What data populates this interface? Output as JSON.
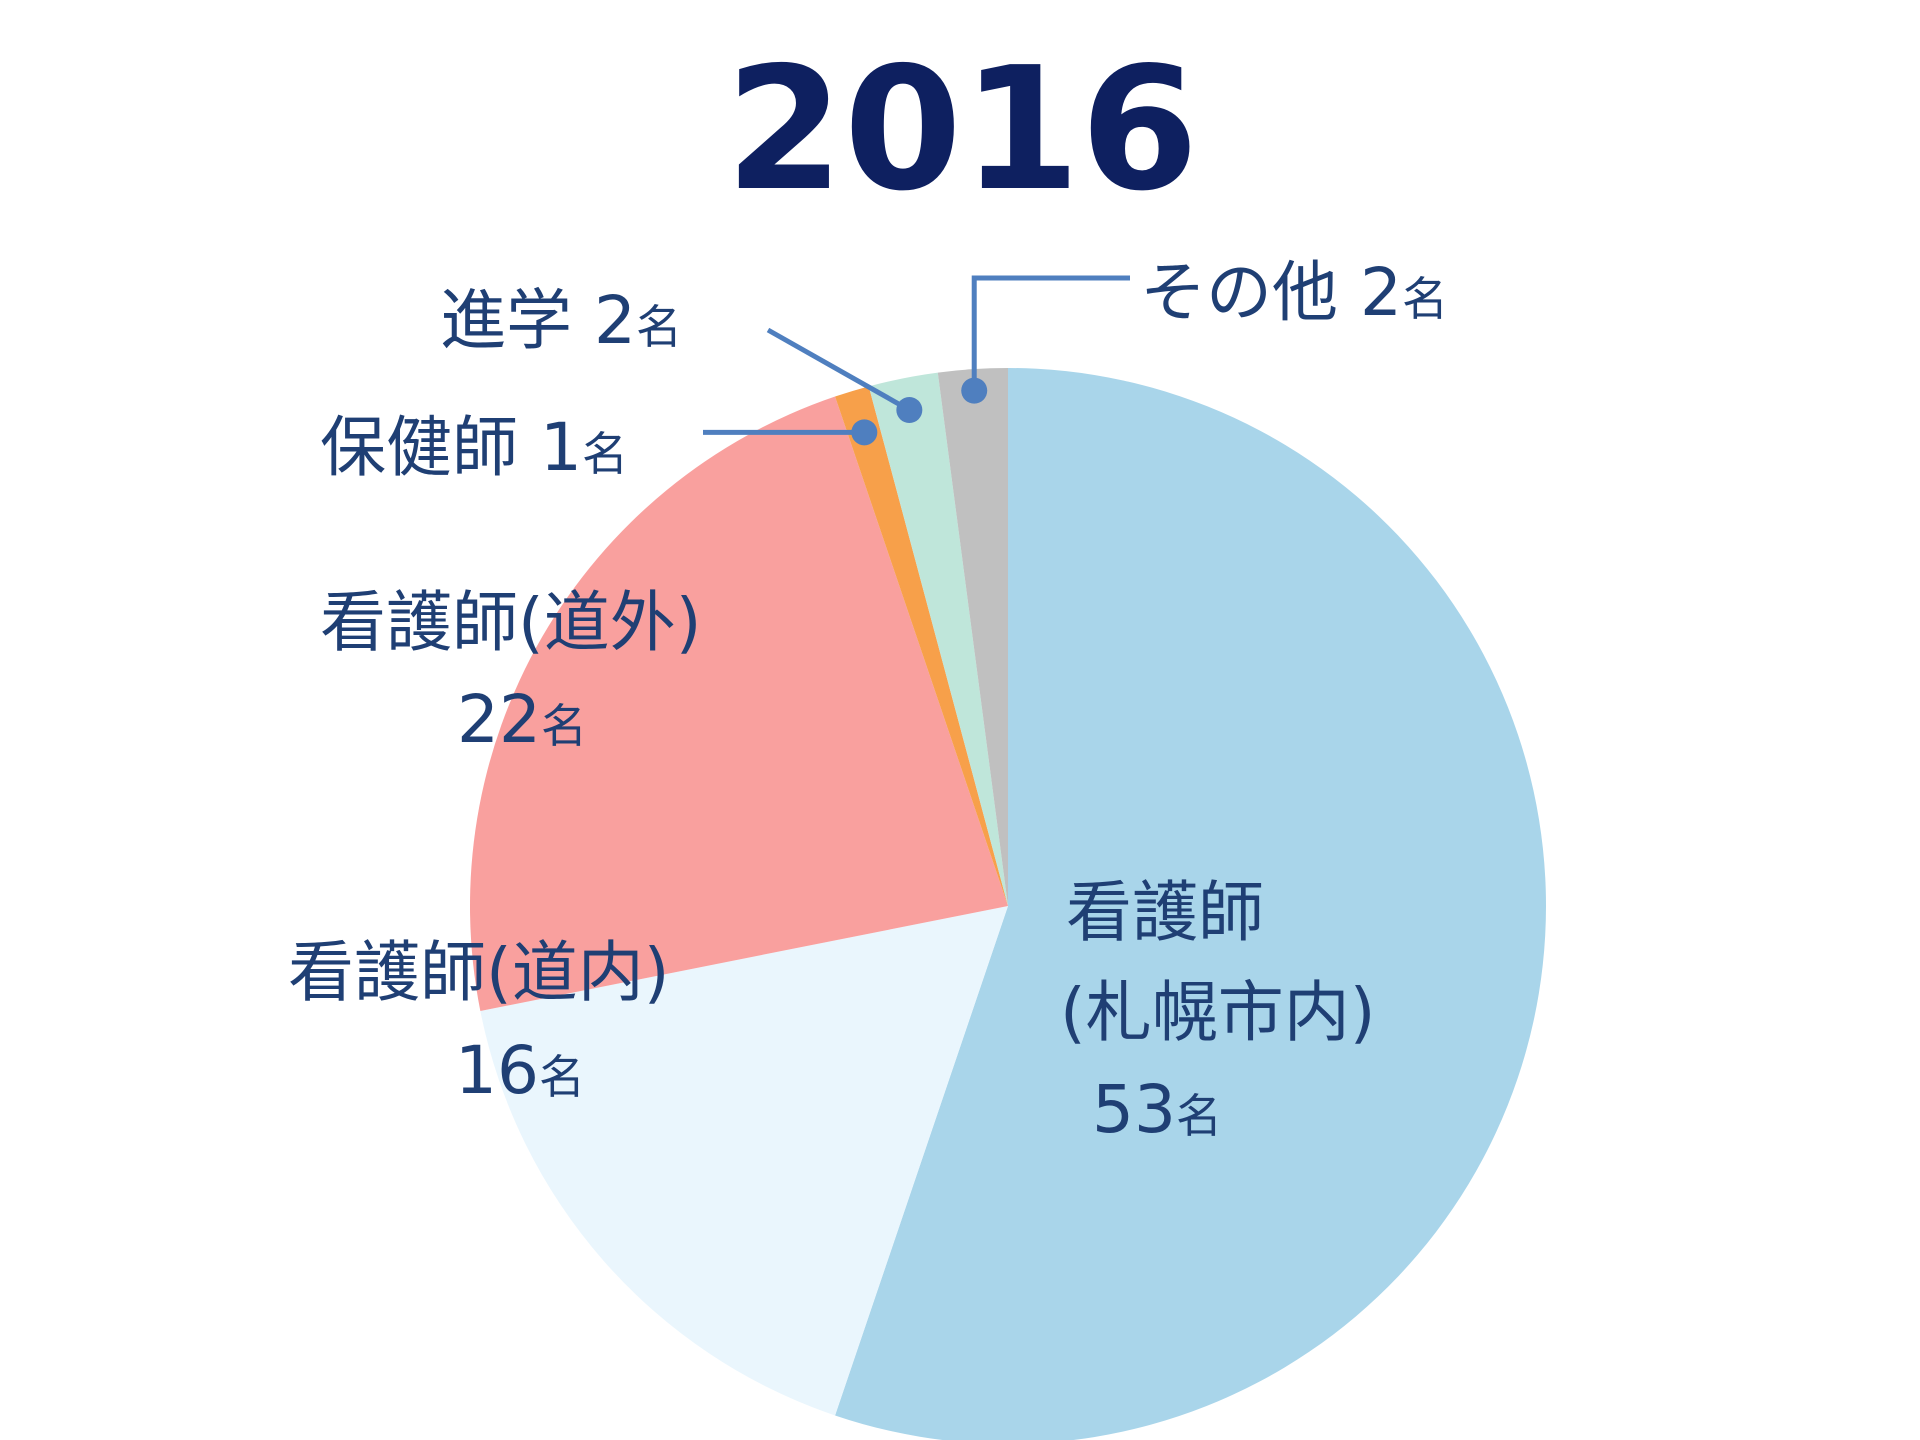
{
  "chart_data": {
    "type": "pie",
    "title": "2016",
    "unit": "名",
    "slices": [
      {
        "label": "看護師(札幌市内)",
        "value": 53,
        "color": "#a9d5ea"
      },
      {
        "label": "看護師(道内)",
        "value": 16,
        "color": "#eaf6fd"
      },
      {
        "label": "看護師(道外)",
        "value": 22,
        "color": "#f9a09e"
      },
      {
        "label": "保健師",
        "value": 1,
        "color": "#f7a04a"
      },
      {
        "label": "進学",
        "value": 2,
        "color": "#bfe6da"
      },
      {
        "label": "その他",
        "value": 2,
        "color": "#c0c0c0"
      }
    ],
    "data_labels": {
      "sapporo_line1": "看護師",
      "sapporo_line2": "(札幌市内)",
      "sapporo_num": "53",
      "donai_line1": "看護師(道内)",
      "donai_num": "16",
      "dogai_line1": "看護師(道外)",
      "dogai_num": "22",
      "hokenshi_name": "保健師",
      "hokenshi_num": "1",
      "shingaku_name": "進学",
      "shingaku_num": "2",
      "sonota_name": "その他",
      "sonota_num": "2"
    },
    "colors": {
      "title": "#0e2060",
      "label": "#1f3f74",
      "leader": "#4f7fbf"
    }
  }
}
